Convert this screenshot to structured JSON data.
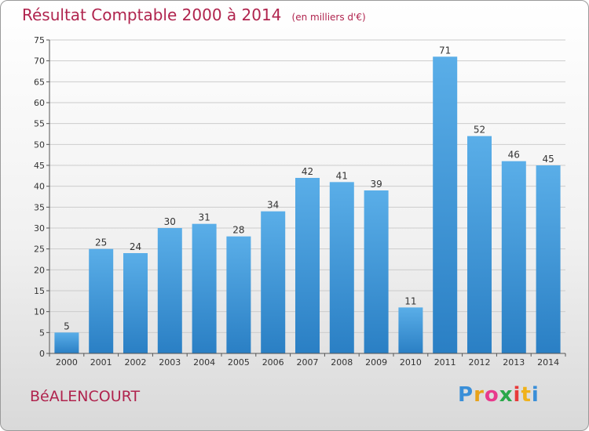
{
  "title": "Résultat Comptable 2000 à 2014",
  "subtitle": "(en milliers d'€)",
  "commune": "BéALENCOURT",
  "brand": {
    "letters": [
      "P",
      "r",
      "o",
      "x",
      "i",
      "t",
      "i"
    ],
    "colors": [
      "#3a8fd8",
      "#e8a21a",
      "#e83a8c",
      "#2aa84a",
      "#e83a3a",
      "#f0b21a",
      "#3a8fd8"
    ]
  },
  "colors": {
    "bar_top": "#5aaee8",
    "bar_bottom": "#2a7fc4",
    "title": "#b0244e",
    "grid": "#cccccc"
  },
  "chart_data": {
    "type": "bar",
    "title": "Résultat Comptable 2000 à 2014",
    "subtitle": "(en milliers d'€)",
    "categories": [
      "2000",
      "2001",
      "2002",
      "2003",
      "2004",
      "2005",
      "2006",
      "2007",
      "2008",
      "2009",
      "2010",
      "2011",
      "2012",
      "2013",
      "2014"
    ],
    "values": [
      5,
      25,
      24,
      30,
      31,
      28,
      34,
      42,
      41,
      39,
      11,
      71,
      52,
      46,
      45
    ],
    "ylim": [
      0,
      75
    ],
    "yticks": [
      0,
      5,
      10,
      15,
      20,
      25,
      30,
      35,
      40,
      45,
      50,
      55,
      60,
      65,
      70,
      75
    ],
    "grid": true,
    "data_labels": true
  }
}
